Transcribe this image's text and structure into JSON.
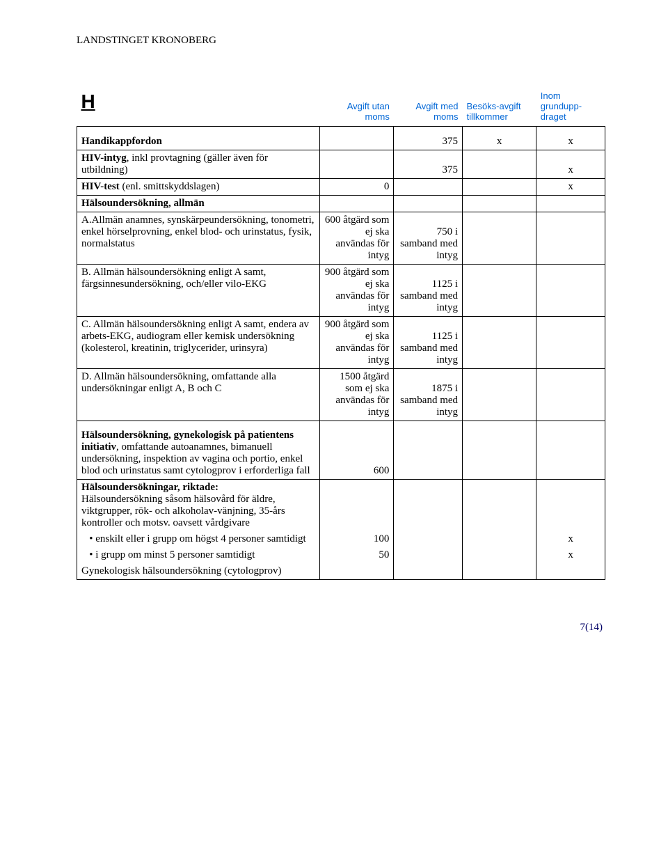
{
  "org": "LANDSTINGET KRONOBERG",
  "section_letter": "H",
  "column_headers": {
    "c2": "Avgift utan moms",
    "c3": "Avgift med moms",
    "c4": "Besöks-avgift tillkommer",
    "c5": "Inom grundupp-draget"
  },
  "rows": {
    "r1": {
      "label_bold": "Handikappfordon",
      "c3": "375",
      "c4": "x",
      "c5": "x"
    },
    "r2": {
      "label_bold": "HIV-intyg",
      "label_rest": ", inkl provtagning (gäller även för utbildning)",
      "c3": "375",
      "c5": "x"
    },
    "r3": {
      "label_bold": "HIV-test",
      "label_rest": " (enl. smittskyddslagen)",
      "c2": "0",
      "c5": "x"
    },
    "r4": {
      "label_bold": "Hälsoundersökning, allmän"
    },
    "r5": {
      "label": "A.Allmän anamnes, synskärpeundersökning, tonometri, enkel hörselprovning, enkel blod- och urinstatus, fysik, normalstatus",
      "c2": "600 åtgärd som ej ska användas för intyg",
      "c3": "750 i samband med intyg"
    },
    "r6": {
      "label": "B. Allmän hälsoundersökning enligt A samt, färgsinnesundersökning, och/eller vilo-EKG",
      "c2": "900 åtgärd som ej ska användas för intyg",
      "c3": "1125 i samband med intyg"
    },
    "r7": {
      "label": "C. Allmän hälsoundersökning enligt A samt, endera av arbets-EKG, audiogram eller kemisk undersökning (kolesterol, kreatinin, triglycerider, urinsyra)",
      "c2": "900 åtgärd som ej ska användas för intyg",
      "c3": "1125 i samband med intyg"
    },
    "r8": {
      "label": "D. Allmän hälsoundersökning, omfattande alla undersökningar enligt A, B och C",
      "c2": "1500 åtgärd som ej ska användas för intyg",
      "c3": "1875 i samband med intyg"
    },
    "r9": {
      "label_bold": "Hälsoundersökning, gynekologisk på patientens initiativ",
      "label_rest": ", omfattande autoanamnes, bimanuell undersökning, inspektion av vagina och portio, enkel blod och urinstatus samt cytologprov i erforderliga fall",
      "c2": "600"
    },
    "r10": {
      "line1_bold": "Hälsoundersökningar, riktade:",
      "label_rest": "Hälsoundersökning såsom hälsovård för äldre, viktgrupper, rök- och alkoholav-vänjning, 35-års kontroller och motsv. oavsett vårdgivare"
    },
    "r11": {
      "label": "   • enskilt eller i grupp om högst 4 personer samtidigt",
      "c2": "100",
      "c5": "x"
    },
    "r12": {
      "label": "   • i grupp om minst 5 personer samtidigt",
      "c2": "50",
      "c5": "x"
    },
    "r13": {
      "label": "Gynekologisk hälsoundersökning (cytologprov)"
    }
  },
  "footer": "7(14)"
}
